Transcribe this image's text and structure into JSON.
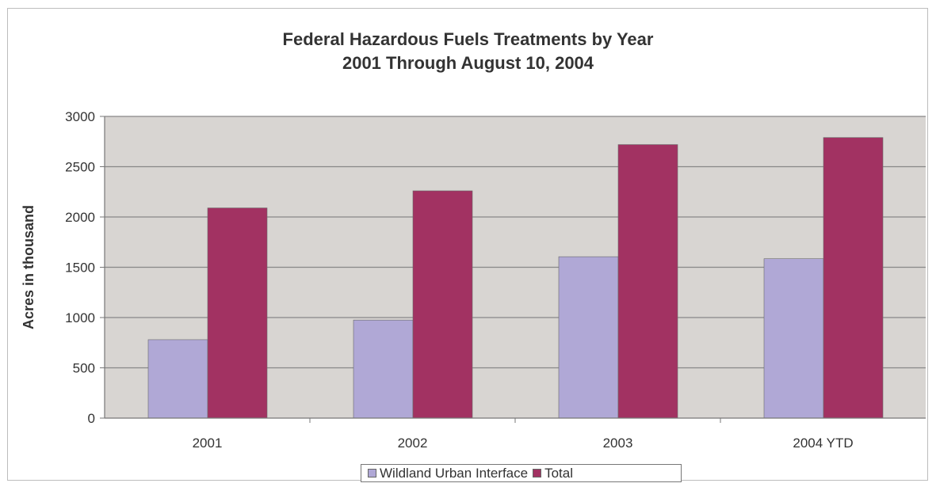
{
  "chart_data": {
    "type": "bar",
    "title": "Federal Hazardous Fuels Treatments by Year",
    "subtitle": "2001 Through August 10, 2004",
    "xlabel": "",
    "ylabel": "Acres in thousand",
    "categories": [
      "2001",
      "2002",
      "2003",
      "2004 YTD"
    ],
    "ylim": [
      0,
      3000
    ],
    "yticks": [
      0,
      500,
      1000,
      1500,
      2000,
      2500,
      3000
    ],
    "grid": true,
    "legend_position": "bottom",
    "series": [
      {
        "name": "Wildland Urban Interface",
        "values": [
          780,
          975,
          1605,
          1585
        ],
        "color": "#b0a8d6"
      },
      {
        "name": "Total",
        "values": [
          2090,
          2260,
          2720,
          2790
        ],
        "color": "#a23262"
      }
    ],
    "plot_background": "#d8d5d2",
    "gridline_color": "#888888"
  }
}
